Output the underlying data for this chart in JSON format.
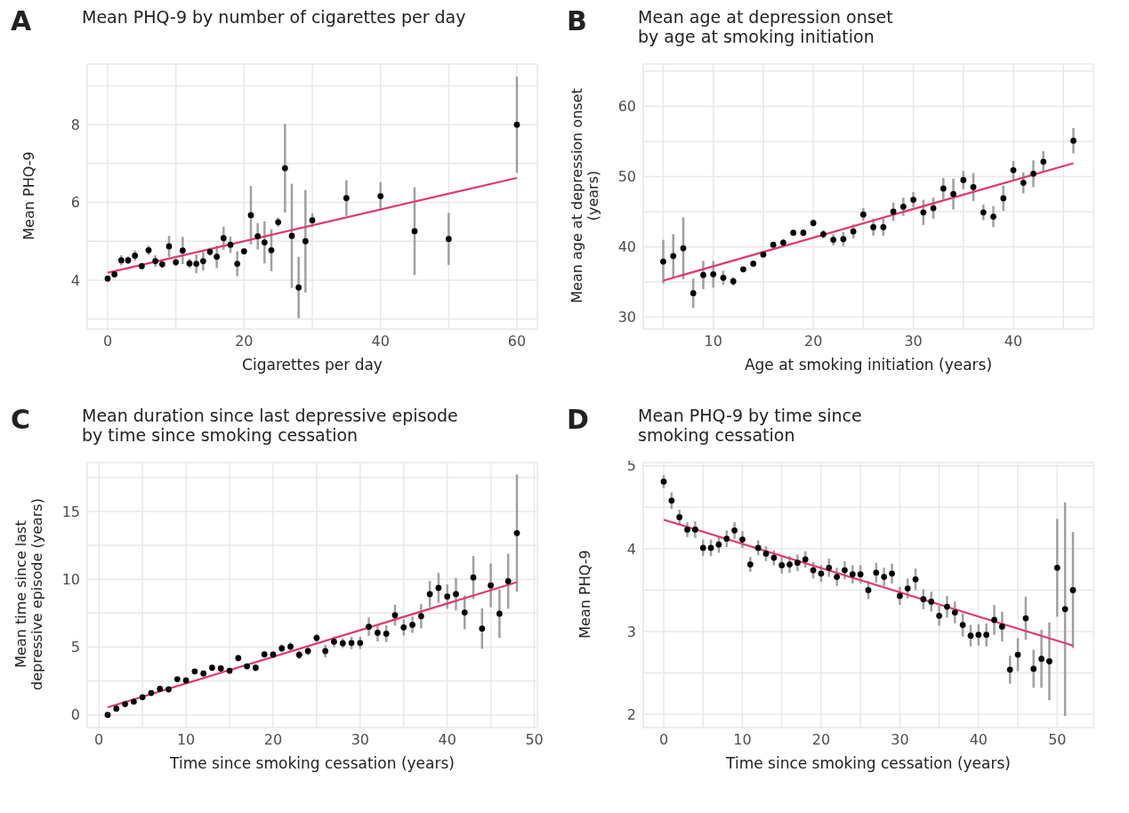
{
  "chart_data": [
    {
      "type": "scatter",
      "title": "Mean PHQ-9 by number of cigarettes per day",
      "xlabel": "Cigarettes per day",
      "ylabel": "Mean PHQ-9",
      "annotations": [
        "A"
      ],
      "grid": true,
      "xlim": [
        -3,
        63
      ],
      "ylim": [
        2.74,
        9.56
      ],
      "xticks": [
        0,
        {
          "value": 10,
          "label": null
        },
        20,
        {
          "value": 30,
          "label": null
        },
        40,
        {
          "value": 50,
          "label": null
        },
        60
      ],
      "yticks": [
        {
          "value": 3,
          "label": null
        },
        4,
        {
          "value": 5,
          "label": null
        },
        6,
        {
          "value": 7,
          "label": null
        },
        8,
        {
          "value": 9,
          "label": null
        }
      ],
      "series": [
        {
          "color": "#000000",
          "marker": "circle",
          "x": [
            0,
            1,
            2,
            3,
            4,
            5,
            6,
            7,
            8,
            9,
            10,
            11,
            12,
            13,
            14,
            15,
            16,
            17,
            18,
            19,
            20,
            21,
            22,
            23,
            24,
            25,
            26,
            27,
            28,
            29,
            30,
            35,
            40,
            45,
            50,
            60
          ],
          "values": [
            4.04,
            4.15,
            4.51,
            4.51,
            4.63,
            4.36,
            4.77,
            4.49,
            4.41,
            4.87,
            4.46,
            4.76,
            4.43,
            4.42,
            4.49,
            4.73,
            4.6,
            5.08,
            4.91,
            4.42,
            4.74,
            5.67,
            5.13,
            4.97,
            4.77,
            5.49,
            6.88,
            5.14,
            3.81,
            5.0,
            5.54,
            6.11,
            6.16,
            5.26,
            5.06,
            8.0
          ],
          "errors": [
            0.05,
            0.05,
            0.13,
            0.1,
            0.13,
            0.08,
            0.12,
            0.15,
            0.1,
            0.27,
            0.1,
            0.35,
            0.12,
            0.24,
            0.24,
            0.1,
            0.29,
            0.3,
            0.21,
            0.32,
            0.08,
            0.75,
            0.34,
            0.54,
            0.54,
            0.12,
            1.14,
            1.34,
            0.79,
            1.32,
            0.18,
            0.46,
            0.36,
            1.13,
            0.67,
            1.24
          ]
        },
        {
          "type": "line",
          "marker": "none",
          "color": "#e2386e",
          "x": [
            0,
            60
          ],
          "values": [
            4.19,
            6.63
          ]
        }
      ]
    },
    {
      "type": "scatter",
      "title": "Mean age at depression onset\nby age at smoking initiation",
      "xlabel": "Age at smoking initiation (years)",
      "ylabel": "Mean age at depression onset\n(years)",
      "annotations": [
        "B"
      ],
      "grid": true,
      "xlim": [
        3,
        48
      ],
      "ylim": [
        28.3,
        66
      ],
      "xticks": [
        {
          "value": 5,
          "label": null
        },
        10,
        {
          "value": 15,
          "label": null
        },
        20,
        {
          "value": 25,
          "label": null
        },
        30,
        {
          "value": 35,
          "label": null
        },
        40,
        {
          "value": 45,
          "label": null
        }
      ],
      "yticks": [
        30,
        {
          "value": 35,
          "label": null
        },
        40,
        {
          "value": 45,
          "label": null
        },
        50,
        {
          "value": 55,
          "label": null
        },
        60,
        {
          "value": 65,
          "label": null
        }
      ],
      "series": [
        {
          "color": "#000000",
          "marker": "circle",
          "x": [
            5,
            6,
            7,
            8,
            9,
            10,
            11,
            12,
            13,
            14,
            15,
            16,
            17,
            18,
            19,
            20,
            21,
            22,
            23,
            24,
            25,
            26,
            27,
            28,
            29,
            30,
            31,
            32,
            33,
            34,
            35,
            36,
            37,
            38,
            39,
            40,
            41,
            42,
            43,
            46
          ],
          "values": [
            37.9,
            38.7,
            39.8,
            33.4,
            36.0,
            36.1,
            35.6,
            35.1,
            36.8,
            37.6,
            38.9,
            40.3,
            40.6,
            42.0,
            42.0,
            43.4,
            41.8,
            41.0,
            41.1,
            42.2,
            44.6,
            42.8,
            42.8,
            45.0,
            45.7,
            46.7,
            44.9,
            45.5,
            48.3,
            47.5,
            49.5,
            48.5,
            44.9,
            44.3,
            46.9,
            50.9,
            49.1,
            50.4,
            52.1,
            55.1
          ],
          "errors": [
            3.1,
            3.1,
            4.4,
            2.1,
            2.0,
            1.9,
            1.0,
            0.6,
            0.4,
            0.4,
            0.4,
            0.4,
            0.5,
            0.4,
            0.5,
            0.5,
            0.6,
            0.8,
            1.0,
            1.0,
            0.9,
            1.2,
            1.2,
            1.3,
            1.3,
            1.1,
            1.8,
            1.5,
            1.5,
            2.2,
            1.3,
            2.0,
            1.1,
            1.5,
            1.8,
            1.3,
            1.5,
            1.9,
            1.5,
            1.8
          ]
        },
        {
          "type": "line",
          "marker": "none",
          "color": "#e2386e",
          "x": [
            5,
            46
          ],
          "values": [
            35.2,
            51.9
          ]
        }
      ]
    },
    {
      "type": "scatter",
      "title": "Mean duration since last depressive episode\nby time since smoking cessation",
      "xlabel": "Time since smoking cessation (years)",
      "ylabel": "Mean time since last\ndepressive episode (years)",
      "annotations": [
        "C"
      ],
      "grid": true,
      "xlim": [
        -1.35,
        50.35
      ],
      "ylim": [
        -0.94,
        18.6
      ],
      "xticks": [
        0,
        {
          "value": 5,
          "label": null
        },
        10,
        {
          "value": 15,
          "label": null
        },
        20,
        {
          "value": 25,
          "label": null
        },
        30,
        {
          "value": 35,
          "label": null
        },
        40,
        {
          "value": 45,
          "label": null
        },
        50
      ],
      "yticks": [
        0,
        {
          "value": 2.5,
          "label": null
        },
        5,
        {
          "value": 7.5,
          "label": null
        },
        10,
        {
          "value": 12.5,
          "label": null
        },
        15,
        {
          "value": 17.5,
          "label": null
        }
      ],
      "series": [
        {
          "color": "#000000",
          "marker": "circle",
          "x": [
            1,
            2,
            3,
            4,
            5,
            6,
            7,
            8,
            9,
            10,
            11,
            12,
            13,
            14,
            15,
            16,
            17,
            18,
            19,
            20,
            21,
            22,
            23,
            24,
            25,
            26,
            27,
            28,
            29,
            30,
            31,
            32,
            33,
            34,
            35,
            36,
            37,
            38,
            39,
            40,
            41,
            42,
            43,
            44,
            45,
            46,
            47,
            48
          ],
          "values": [
            0.0,
            0.46,
            0.79,
            0.97,
            1.3,
            1.61,
            1.92,
            1.88,
            2.63,
            2.54,
            3.2,
            3.05,
            3.47,
            3.42,
            3.25,
            4.19,
            3.58,
            3.47,
            4.46,
            4.44,
            4.9,
            5.03,
            4.42,
            4.7,
            5.67,
            4.7,
            5.39,
            5.28,
            5.3,
            5.3,
            6.49,
            6.05,
            5.98,
            7.35,
            6.45,
            6.64,
            7.28,
            8.9,
            9.36,
            8.72,
            8.9,
            7.55,
            10.13,
            6.36,
            9.54,
            7.46,
            9.85,
            13.4
          ],
          "errors": [
            0.05,
            0.1,
            0.1,
            0.1,
            0.1,
            0.1,
            0.1,
            0.15,
            0.15,
            0.15,
            0.15,
            0.15,
            0.2,
            0.2,
            0.2,
            0.25,
            0.2,
            0.25,
            0.25,
            0.25,
            0.3,
            0.3,
            0.3,
            0.3,
            0.3,
            0.46,
            0.4,
            0.35,
            0.45,
            0.45,
            0.68,
            0.63,
            0.62,
            0.77,
            0.6,
            0.6,
            0.9,
            0.97,
            1.1,
            0.9,
            1.2,
            1.24,
            1.58,
            1.49,
            1.61,
            1.79,
            2.03,
            4.32
          ]
        },
        {
          "type": "line",
          "marker": "none",
          "color": "#e2386e",
          "x": [
            1,
            48
          ],
          "values": [
            0.55,
            9.78
          ]
        }
      ]
    },
    {
      "type": "scatter",
      "title": "Mean PHQ-9 by time since\nsmoking cessation",
      "xlabel": "Time since smoking cessation (years)",
      "ylabel": "Mean PHQ-9",
      "annotations": [
        "D"
      ],
      "grid": true,
      "xlim": [
        -2.6,
        54.6
      ],
      "ylim": [
        1.84,
        5.04
      ],
      "xticks": [
        0,
        {
          "value": 5,
          "label": null
        },
        10,
        {
          "value": 15,
          "label": null
        },
        20,
        {
          "value": 25,
          "label": null
        },
        30,
        {
          "value": 35,
          "label": null
        },
        40,
        {
          "value": 45,
          "label": null
        },
        50
      ],
      "yticks": [
        2,
        {
          "value": 2.5,
          "label": null
        },
        3,
        {
          "value": 3.5,
          "label": null
        },
        4,
        {
          "value": 4.5,
          "label": null
        },
        5
      ],
      "series": [
        {
          "color": "#000000",
          "marker": "circle",
          "x": [
            0,
            1,
            2,
            3,
            4,
            5,
            6,
            7,
            8,
            9,
            10,
            11,
            12,
            13,
            14,
            15,
            16,
            17,
            18,
            19,
            20,
            21,
            22,
            23,
            24,
            25,
            26,
            27,
            28,
            29,
            30,
            31,
            32,
            33,
            34,
            35,
            36,
            37,
            38,
            39,
            40,
            41,
            42,
            43,
            44,
            45,
            46,
            47,
            48,
            49,
            50,
            51,
            52
          ],
          "values": [
            4.81,
            4.58,
            4.38,
            4.23,
            4.23,
            4.01,
            4.01,
            4.05,
            4.12,
            4.22,
            4.11,
            3.81,
            4.01,
            3.94,
            3.89,
            3.8,
            3.81,
            3.83,
            3.87,
            3.74,
            3.7,
            3.77,
            3.66,
            3.74,
            3.69,
            3.69,
            3.5,
            3.71,
            3.66,
            3.7,
            3.43,
            3.52,
            3.63,
            3.39,
            3.36,
            3.19,
            3.3,
            3.23,
            3.08,
            2.95,
            2.96,
            2.96,
            3.14,
            3.06,
            2.54,
            2.72,
            3.16,
            2.55,
            2.67,
            2.64,
            3.77,
            3.27,
            3.5
          ],
          "errors": [
            0.08,
            0.1,
            0.09,
            0.09,
            0.1,
            0.1,
            0.1,
            0.1,
            0.1,
            0.1,
            0.1,
            0.09,
            0.09,
            0.09,
            0.09,
            0.1,
            0.1,
            0.1,
            0.1,
            0.1,
            0.1,
            0.11,
            0.11,
            0.11,
            0.11,
            0.11,
            0.11,
            0.12,
            0.11,
            0.12,
            0.11,
            0.12,
            0.13,
            0.12,
            0.12,
            0.12,
            0.13,
            0.13,
            0.14,
            0.13,
            0.13,
            0.14,
            0.18,
            0.18,
            0.17,
            0.2,
            0.26,
            0.23,
            0.35,
            0.47,
            0.59,
            1.29,
            0.7
          ]
        },
        {
          "type": "line",
          "marker": "none",
          "color": "#e2386e",
          "x": [
            0,
            52
          ],
          "values": [
            4.35,
            2.83
          ]
        }
      ]
    }
  ]
}
